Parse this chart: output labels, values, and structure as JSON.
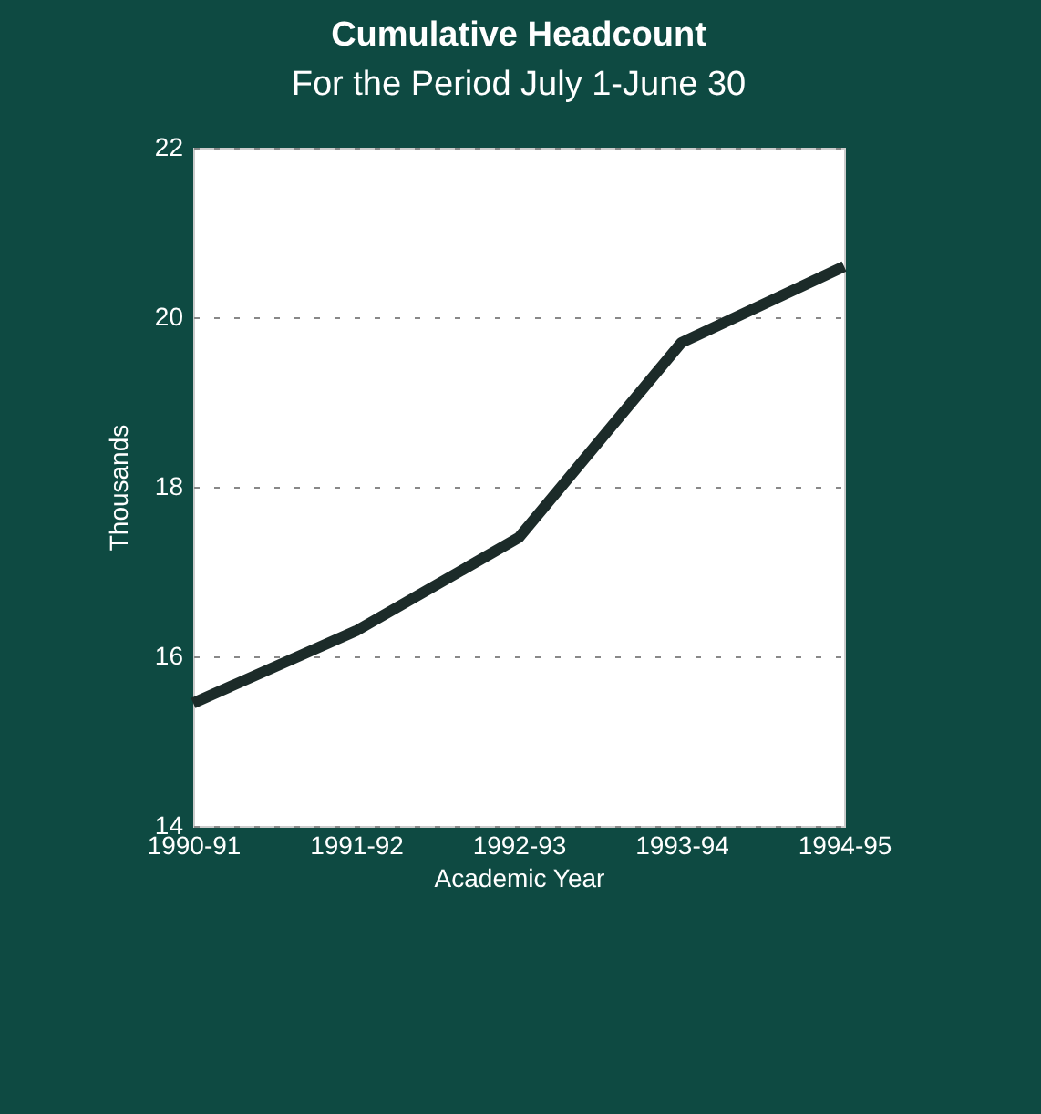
{
  "chart_data": {
    "type": "line",
    "title": "Cumulative Headcount",
    "subtitle": "For the Period July 1-June 30",
    "xlabel": "Academic Year",
    "ylabel": "Thousands",
    "categories": [
      "1990-91",
      "1991-92",
      "1992-93",
      "1993-94",
      "1994-95"
    ],
    "series": [
      {
        "color": "#1c2b29",
        "values": [
          15.45,
          16.3,
          17.4,
          19.7,
          20.6
        ]
      }
    ],
    "ylim": [
      14,
      22
    ],
    "yticks": [
      14,
      16,
      18,
      20,
      22
    ],
    "grid": "y",
    "legend": false,
    "marker": "none",
    "line_style": "solid"
  }
}
